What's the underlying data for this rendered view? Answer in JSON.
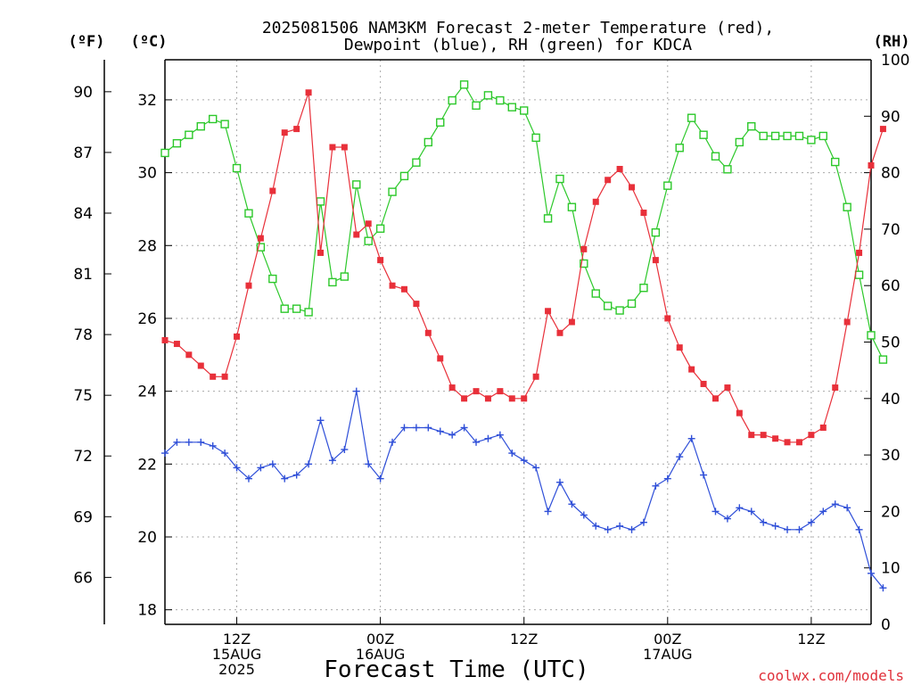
{
  "chart_data": {
    "type": "line",
    "title_line1": "2025081506 NAM3KM Forecast 2-meter Temperature (red),",
    "title_line2": "Dewpoint (blue), RH (green) for KDCA",
    "xlabel": "Forecast Time (UTC)",
    "ylabel_f": "(ºF)",
    "ylabel_c": "(ºC)",
    "ylabel_rh": "(RH)",
    "credit": "coolwx.com/models",
    "grid": true,
    "x_range_hours": [
      0,
      59
    ],
    "x_ticks": [
      {
        "hour": 6,
        "lines": [
          "12Z",
          "15AUG",
          "2025"
        ]
      },
      {
        "hour": 18,
        "lines": [
          "00Z",
          "16AUG"
        ]
      },
      {
        "hour": 30,
        "lines": [
          "12Z"
        ]
      },
      {
        "hour": 42,
        "lines": [
          "00Z",
          "17AUG"
        ]
      },
      {
        "hour": 54,
        "lines": [
          "12Z"
        ]
      }
    ],
    "y_celsius_ticks": [
      18,
      20,
      22,
      24,
      26,
      28,
      30,
      32
    ],
    "y_celsius_range": [
      17.6,
      33.1
    ],
    "y_fahrenheit_ticks": [
      66,
      69,
      72,
      75,
      78,
      81,
      84,
      87,
      90
    ],
    "y_rh_ticks": [
      0,
      10,
      20,
      30,
      40,
      50,
      60,
      70,
      80,
      90,
      100
    ],
    "y_rh_range": [
      0,
      100
    ],
    "series": [
      {
        "name": "Temperature",
        "unit": "C",
        "color": "#e8303a",
        "marker": "filled-square",
        "values": [
          25.4,
          25.3,
          25.0,
          24.7,
          24.4,
          24.4,
          25.5,
          26.9,
          28.2,
          29.5,
          31.1,
          31.2,
          32.2,
          27.8,
          30.7,
          30.7,
          28.3,
          28.6,
          27.6,
          26.9,
          26.8,
          26.4,
          25.6,
          24.9,
          24.1,
          23.8,
          24.0,
          23.8,
          24.0,
          23.8,
          23.8,
          24.4,
          26.2,
          25.6,
          25.9,
          27.9,
          29.2,
          29.8,
          30.1,
          29.6,
          28.9,
          27.6,
          26.0,
          25.2,
          24.6,
          24.2,
          23.8,
          24.1,
          23.4,
          22.8,
          22.8,
          22.7,
          22.6,
          22.6,
          22.8,
          23.0,
          24.1,
          25.9,
          27.8,
          30.2,
          31.2
        ]
      },
      {
        "name": "Dewpoint",
        "unit": "C",
        "color": "#2f4fd8",
        "marker": "plus",
        "values": [
          22.3,
          22.6,
          22.6,
          22.6,
          22.5,
          22.3,
          21.9,
          21.6,
          21.9,
          22.0,
          21.6,
          21.7,
          22.0,
          23.2,
          22.1,
          22.4,
          24.0,
          22.0,
          21.6,
          22.6,
          23.0,
          23.0,
          23.0,
          22.9,
          22.8,
          23.0,
          22.6,
          22.7,
          22.8,
          22.3,
          22.1,
          21.9,
          20.7,
          21.5,
          20.9,
          20.6,
          20.3,
          20.2,
          20.3,
          20.2,
          20.4,
          21.4,
          21.6,
          22.2,
          22.7,
          21.7,
          20.7,
          20.5,
          20.8,
          20.7,
          20.4,
          20.3,
          20.2,
          20.2,
          20.4,
          20.7,
          20.9,
          20.8,
          20.2,
          19.0,
          18.6
        ]
      },
      {
        "name": "RH",
        "unit": "%",
        "color": "#2cc82a",
        "marker": "open-square",
        "values": [
          83.5,
          85.2,
          86.7,
          88.2,
          89.5,
          88.6,
          80.8,
          72.8,
          66.8,
          61.2,
          55.9,
          55.9,
          55.3,
          74.9,
          60.6,
          61.6,
          77.9,
          67.9,
          70.1,
          76.6,
          79.4,
          81.8,
          85.4,
          88.9,
          92.8,
          95.6,
          91.9,
          93.7,
          92.8,
          91.6,
          91.0,
          86.2,
          71.9,
          78.9,
          73.9,
          63.9,
          58.6,
          56.4,
          55.6,
          56.8,
          59.6,
          69.4,
          77.7,
          84.4,
          89.7,
          86.7,
          82.9,
          80.6,
          85.4,
          88.2,
          86.5,
          86.5,
          86.5,
          86.5,
          85.8,
          86.5,
          81.9,
          73.9,
          61.9,
          51.2,
          46.9
        ]
      }
    ]
  }
}
